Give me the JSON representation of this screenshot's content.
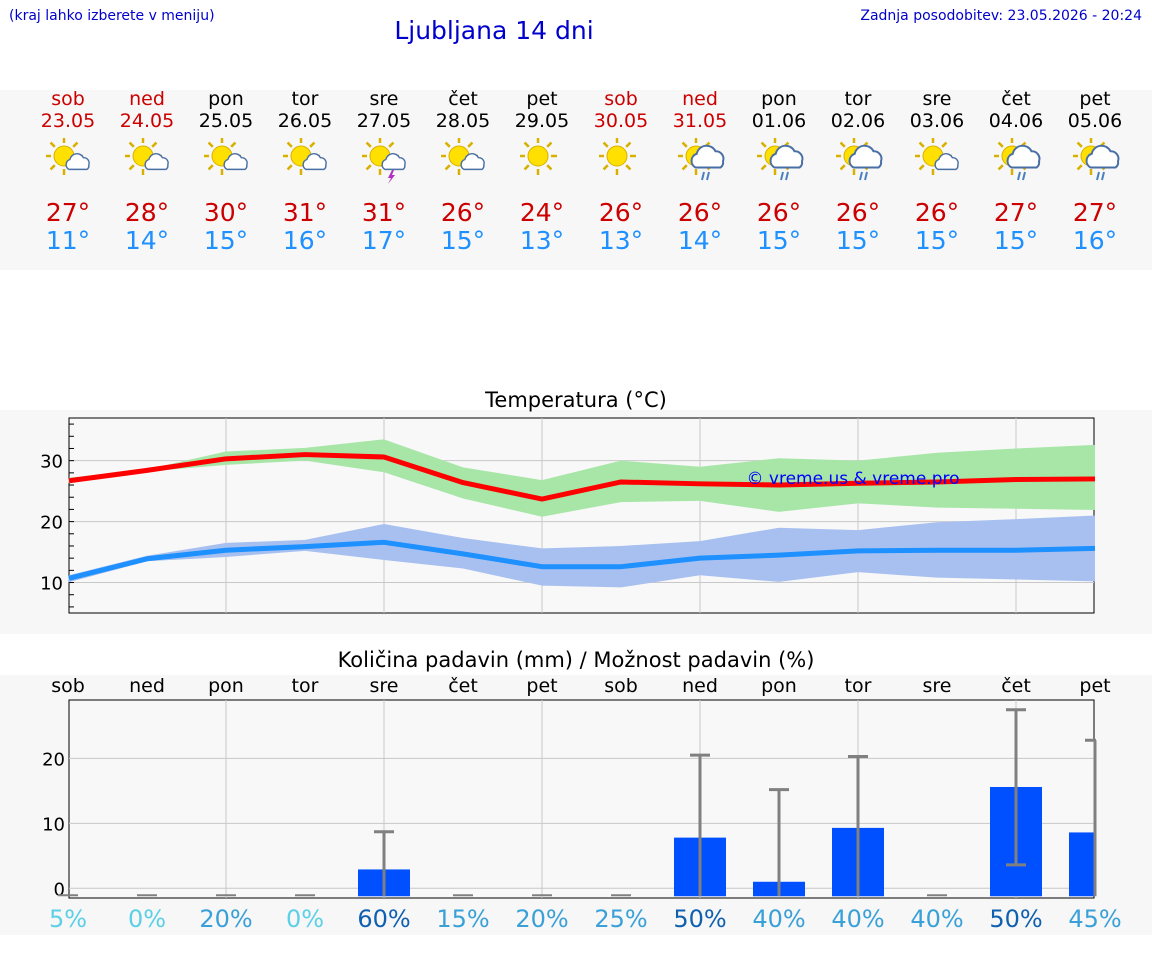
{
  "header": {
    "note": "(kraj lahko izberete v meniju)",
    "title": "Ljubljana 14 dni",
    "updated": "Zadnja posodobitev: 23.05.2026 - 20:24"
  },
  "days": [
    {
      "name": "sob",
      "date": "23.05",
      "weekend": true,
      "icon": "sun-cloud-icon",
      "max": "27°",
      "min": "11°"
    },
    {
      "name": "ned",
      "date": "24.05",
      "weekend": true,
      "icon": "sun-cloud-icon",
      "max": "28°",
      "min": "14°"
    },
    {
      "name": "pon",
      "date": "25.05",
      "weekend": false,
      "icon": "sun-cloud-icon",
      "max": "30°",
      "min": "15°"
    },
    {
      "name": "tor",
      "date": "26.05",
      "weekend": false,
      "icon": "sun-cloud-icon",
      "max": "31°",
      "min": "16°"
    },
    {
      "name": "sre",
      "date": "27.05",
      "weekend": false,
      "icon": "sun-cloud-thunder-icon",
      "max": "31°",
      "min": "17°"
    },
    {
      "name": "čet",
      "date": "28.05",
      "weekend": false,
      "icon": "sun-cloud-icon",
      "max": "26°",
      "min": "15°"
    },
    {
      "name": "pet",
      "date": "29.05",
      "weekend": false,
      "icon": "sun-icon",
      "max": "24°",
      "min": "13°"
    },
    {
      "name": "sob",
      "date": "30.05",
      "weekend": true,
      "icon": "sun-icon",
      "max": "26°",
      "min": "13°"
    },
    {
      "name": "ned",
      "date": "31.05",
      "weekend": true,
      "icon": "sun-cloud-rain-icon",
      "max": "26°",
      "min": "14°"
    },
    {
      "name": "pon",
      "date": "01.06",
      "weekend": false,
      "icon": "sun-cloud-rain-icon",
      "max": "26°",
      "min": "15°"
    },
    {
      "name": "tor",
      "date": "02.06",
      "weekend": false,
      "icon": "sun-cloud-rain-icon",
      "max": "26°",
      "min": "15°"
    },
    {
      "name": "sre",
      "date": "03.06",
      "weekend": false,
      "icon": "sun-cloud-icon",
      "max": "26°",
      "min": "15°"
    },
    {
      "name": "čet",
      "date": "04.06",
      "weekend": false,
      "icon": "sun-cloud-rain-icon",
      "max": "27°",
      "min": "15°"
    },
    {
      "name": "pet",
      "date": "05.06",
      "weekend": false,
      "icon": "sun-cloud-rain-icon",
      "max": "27°",
      "min": "16°"
    }
  ],
  "colors": {
    "max_line": "#ff0000",
    "max_band": "#a8e6a8",
    "min_line": "#1e90ff",
    "min_band": "#a8c0f0",
    "rain_bar": "#0050ff",
    "error_bar": "#808080",
    "weekend_text": "#cc0000",
    "header_text": "#0000cc"
  },
  "chart_data": [
    {
      "type": "line",
      "title": "Temperatura (°C)",
      "watermark": "© vreme.us & vreme.pro",
      "ylim": [
        5,
        37
      ],
      "yticks": [
        10,
        20,
        30
      ],
      "grid": true,
      "series": [
        {
          "values": [
            26.7,
            28.4,
            30.3,
            31.0,
            30.6,
            26.4,
            23.7,
            26.5,
            26.2,
            26.0,
            26.3,
            26.5,
            26.9,
            27.0
          ],
          "lower": [
            26.3,
            28.2,
            29.3,
            30.0,
            28.1,
            23.8,
            20.8,
            23.2,
            23.4,
            21.6,
            23.0,
            22.3,
            22.1,
            21.9
          ],
          "upper": [
            27.2,
            28.6,
            31.5,
            32.1,
            33.5,
            28.9,
            26.8,
            30.0,
            29.0,
            30.4,
            30.0,
            31.3,
            32.0,
            32.6
          ]
        },
        {
          "values": [
            10.7,
            13.9,
            15.3,
            15.9,
            16.6,
            14.7,
            12.6,
            12.6,
            14.0,
            14.5,
            15.2,
            15.3,
            15.3,
            15.6
          ],
          "lower": [
            10.0,
            13.5,
            14.2,
            15.2,
            13.7,
            12.3,
            9.5,
            9.2,
            11.2,
            10.1,
            11.7,
            10.8,
            10.5,
            10.2
          ],
          "upper": [
            11.2,
            14.4,
            16.5,
            17.0,
            19.6,
            17.3,
            15.6,
            16.0,
            16.8,
            19.0,
            18.6,
            19.9,
            20.4,
            21.0
          ]
        }
      ]
    },
    {
      "type": "bar",
      "title": "Količina padavin (mm) / Možnost padavin (%)",
      "categories": [
        "sob",
        "ned",
        "pon",
        "tor",
        "sre",
        "čet",
        "pet",
        "sob",
        "ned",
        "pon",
        "tor",
        "sre",
        "čet",
        "pet"
      ],
      "ylim": [
        -1.5,
        29
      ],
      "yticks": [
        0,
        10,
        20
      ],
      "grid": true,
      "values": [
        0,
        0,
        0,
        0,
        2.9,
        0,
        0,
        0,
        7.8,
        1.0,
        9.3,
        0,
        15.6,
        8.6
      ],
      "error_high": [
        0,
        0,
        0,
        0,
        8.7,
        0,
        0,
        0,
        20.5,
        15.2,
        20.3,
        0,
        27.5,
        22.8
      ],
      "error_low": [
        0,
        0,
        0,
        0,
        0,
        0,
        0,
        0,
        0,
        0,
        0,
        0,
        3.6,
        0
      ],
      "probability": [
        "5%",
        "0%",
        "20%",
        "0%",
        "60%",
        "15%",
        "20%",
        "25%",
        "50%",
        "40%",
        "40%",
        "40%",
        "50%",
        "45%"
      ],
      "probability_colors": [
        "#5bd0e6",
        "#5bd0e6",
        "#3aa0d8",
        "#5bd0e6",
        "#1060b0",
        "#3aa0d8",
        "#3aa0d8",
        "#3aa0d8",
        "#1060b0",
        "#3aa0d8",
        "#3aa0d8",
        "#3aa0d8",
        "#1060b0",
        "#3aa0d8"
      ]
    }
  ]
}
